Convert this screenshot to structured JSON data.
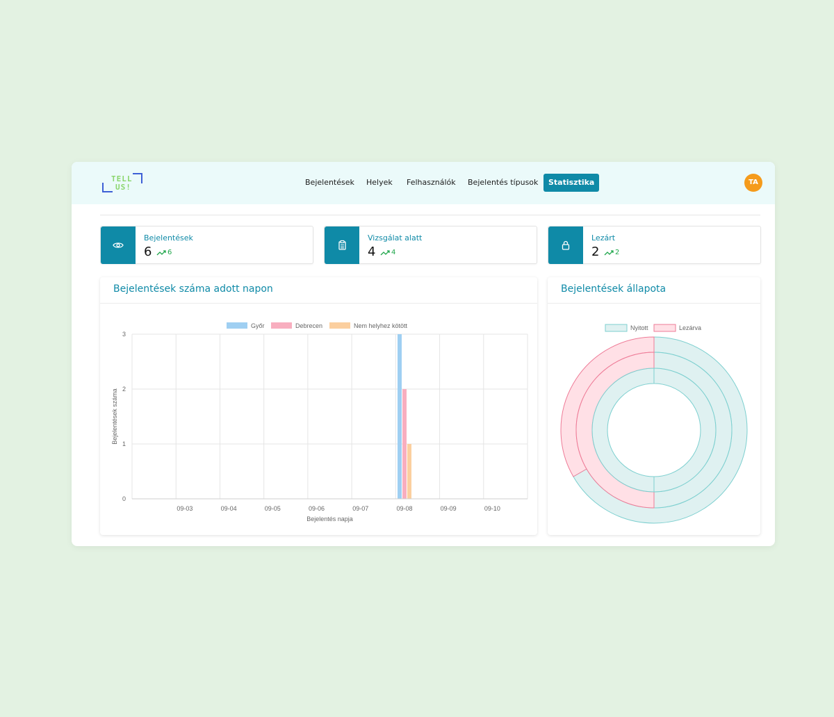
{
  "logo": {
    "line1": "TELL",
    "line2": "US!"
  },
  "nav": {
    "items": [
      "Bejelentések",
      "Helyek",
      "Felhasználók",
      "Bejelentés típusok"
    ],
    "active": "Statisztika"
  },
  "user": {
    "initials": "TA"
  },
  "stats": [
    {
      "label": "Bejelentések",
      "value": "6",
      "trend": "6",
      "icon": "eye-icon"
    },
    {
      "label": "Vizsgálat alatt",
      "value": "4",
      "trend": "4",
      "icon": "clipboard-icon"
    },
    {
      "label": "Lezárt",
      "value": "2",
      "trend": "2",
      "icon": "lock-icon"
    }
  ],
  "colors": {
    "accent": "#0f8aa7",
    "trend": "#1fa64b",
    "avatar": "#f59b1b"
  },
  "bar_panel": {
    "title": "Bejelentések száma adott napon"
  },
  "doughnut_panel": {
    "title": "Bejelentések állapota"
  },
  "chart_data": [
    {
      "type": "bar",
      "xlabel": "Bejelentés napja",
      "ylabel": "Bejelentések száma",
      "ylim": [
        0,
        3
      ],
      "yticks": [
        0,
        1,
        2,
        3
      ],
      "categories": [
        "09-03",
        "09-04",
        "09-05",
        "09-06",
        "09-07",
        "09-08",
        "09-09",
        "09-10"
      ],
      "series": [
        {
          "name": "Győr",
          "color": "#9fcff2",
          "values": [
            0,
            0,
            0,
            0,
            0,
            3,
            0,
            0
          ]
        },
        {
          "name": "Debrecen",
          "color": "#f8aebf",
          "values": [
            0,
            0,
            0,
            0,
            0,
            2,
            0,
            0
          ]
        },
        {
          "name": "Nem helyhez kötött",
          "color": "#fbcf9f",
          "values": [
            0,
            0,
            0,
            0,
            0,
            1,
            0,
            0
          ]
        }
      ],
      "grid": true,
      "legend": "top"
    },
    {
      "type": "pie",
      "variant": "doughnut",
      "legend": "top",
      "labels": [
        "Nyitott",
        "Lezárva"
      ],
      "colors": {
        "Nyitott": "#dff1f1",
        "Lezárva": "#ffe0e6"
      },
      "border_colors": {
        "Nyitott": "#7ccfcf",
        "Lezárva": "#ee7b97"
      },
      "rings": [
        {
          "values": [
            4,
            2
          ]
        },
        {
          "values": [
            1,
            1
          ]
        },
        {
          "values": [
            1,
            0
          ]
        }
      ]
    }
  ]
}
